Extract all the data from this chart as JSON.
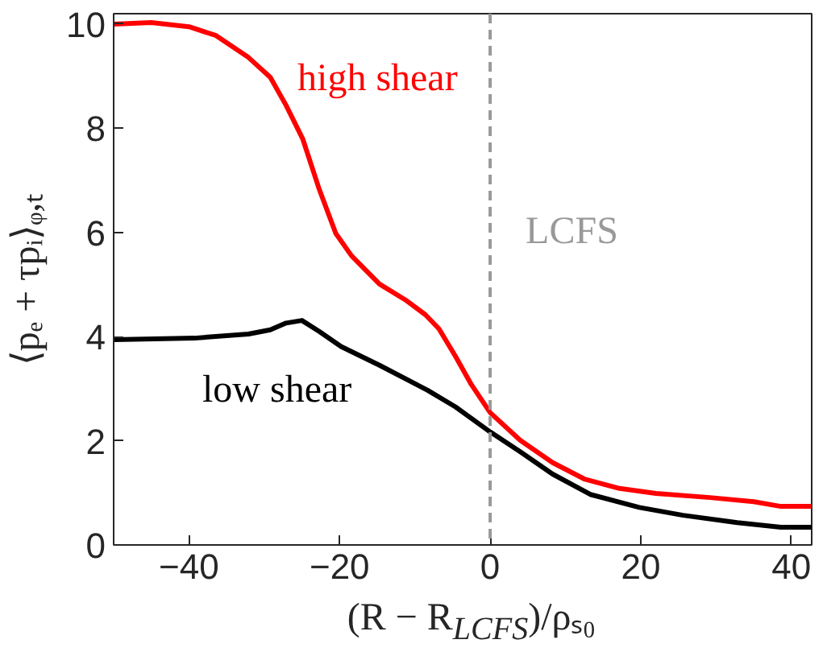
{
  "chart_data": {
    "type": "line",
    "xlabel": "(R − R$_{LCFS}$)/ρₛ₀",
    "ylabel": "⟨pₑ + τpᵢ⟩ᵩ,ₜ",
    "xlim": [
      -50,
      42.7
    ],
    "ylim": [
      0,
      10.2
    ],
    "xticks": [
      -40,
      -20,
      0,
      20,
      40
    ],
    "yticks": [
      0,
      2,
      4,
      6,
      8,
      10
    ],
    "grid": false,
    "legend": false,
    "line_style": "solid",
    "marker": "none",
    "series": [
      {
        "name": "high shear",
        "color": "#ff0000",
        "x": [
          -50,
          -45,
          -40,
          -36.4,
          -32.1,
          -29.2,
          -27.1,
          -24.9,
          -22.7,
          -20.5,
          -18.4,
          -14.7,
          -11.1,
          -8.6,
          -6.8,
          -4.6,
          -2.5,
          0,
          4,
          8.3,
          12.6,
          17,
          22,
          29.2,
          35,
          38.6,
          42.7
        ],
        "values": [
          10.0,
          10.03,
          9.95,
          9.78,
          9.36,
          8.98,
          8.44,
          7.8,
          6.83,
          5.98,
          5.55,
          5.01,
          4.69,
          4.42,
          4.15,
          3.62,
          3.08,
          2.54,
          2.01,
          1.58,
          1.26,
          1.09,
          0.99,
          0.91,
          0.83,
          0.74,
          0.74
        ]
      },
      {
        "name": "low shear",
        "color": "#000000",
        "x": [
          -50,
          -39.3,
          -32.1,
          -29.2,
          -27.1,
          -25,
          -22.7,
          -19.8,
          -14.7,
          -8.3,
          -4.6,
          0,
          4,
          8.3,
          13.3,
          19.8,
          25.6,
          32.8,
          38.6,
          42.7
        ],
        "values": [
          3.94,
          3.97,
          4.05,
          4.13,
          4.26,
          4.31,
          4.1,
          3.81,
          3.45,
          2.97,
          2.65,
          2.17,
          1.79,
          1.36,
          0.97,
          0.72,
          0.57,
          0.43,
          0.34,
          0.34
        ]
      }
    ],
    "ref_lines": [
      {
        "axis": "x",
        "value": 0,
        "label": "LCFS",
        "color": "#999999",
        "line_style": "dashed"
      }
    ]
  }
}
